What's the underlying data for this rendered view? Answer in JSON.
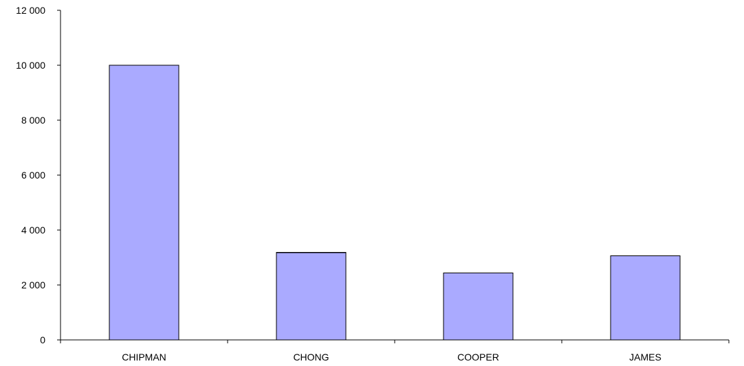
{
  "chart_data": {
    "type": "bar",
    "title": "",
    "xlabel": "",
    "ylabel": "",
    "categories": [
      "CHIPMAN",
      "CHONG",
      "COOPER",
      "JAMES"
    ],
    "values": [
      10000,
      3180,
      2440,
      3060
    ],
    "ylim": [
      0,
      12000
    ],
    "yticks": [
      0,
      2000,
      4000,
      6000,
      8000,
      10000,
      12000
    ],
    "ytick_labels": [
      "0",
      "2 000",
      "4 000",
      "6 000",
      "8 000",
      "10 000",
      "12 000"
    ],
    "grid": false,
    "legend": "none",
    "bar_color": "#aaaaff",
    "bar_edge_color": "#000000"
  }
}
